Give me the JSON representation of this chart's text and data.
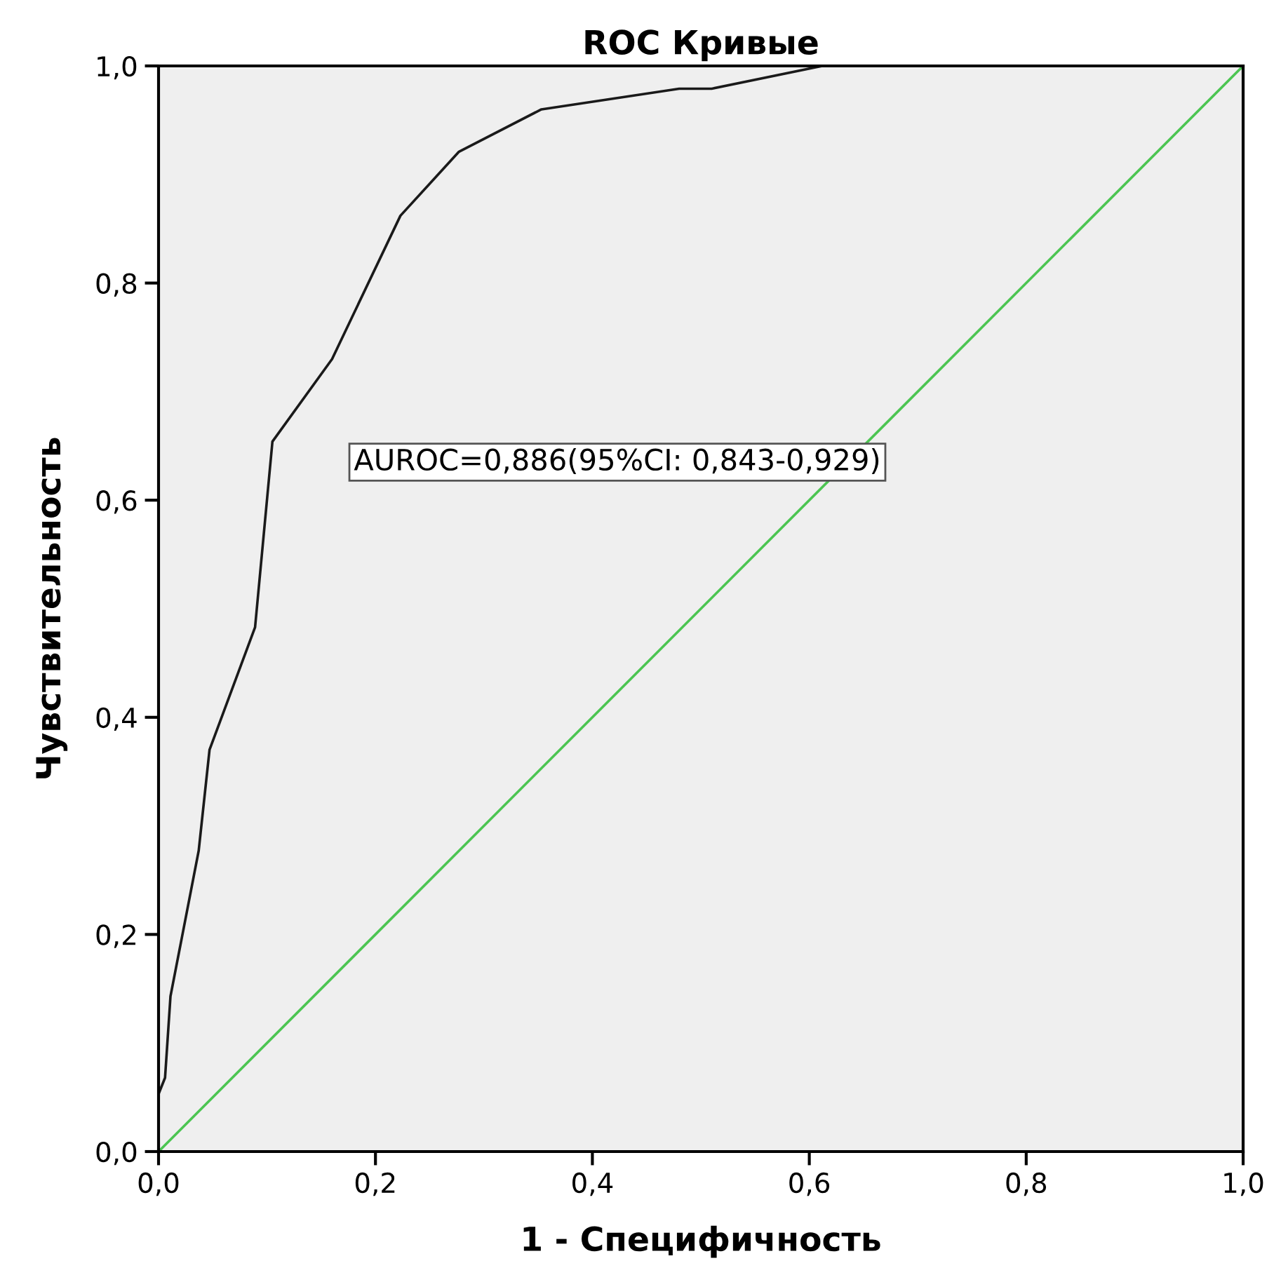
{
  "chart_data": {
    "type": "line",
    "title": "ROC Кривые",
    "xlabel": "1 - Специфичность",
    "ylabel": "Чувствительность",
    "series": [
      {
        "color": "#1a1a1a",
        "x": [
          0,
          0,
          0.006,
          0.011,
          0.037,
          0.047,
          0.089,
          0.105,
          0.16,
          0.223,
          0.277,
          0.353,
          0.48,
          0.51,
          0.612,
          1.0
        ],
        "values": [
          0,
          0.053,
          0.068,
          0.143,
          0.277,
          0.37,
          0.483,
          0.654,
          0.73,
          0.862,
          0.921,
          0.96,
          0.979,
          0.979,
          1.0,
          1.0
        ]
      },
      {
        "color": "#4cc552",
        "x": [
          0,
          1.0
        ],
        "values": [
          0,
          1.0
        ]
      }
    ],
    "annotations": [
      "AUROC=0,886(95%CI: 0,843-0,929)"
    ],
    "xlim": [
      0,
      1.0
    ],
    "ylim": [
      0,
      1.0
    ],
    "xticks": [
      {
        "value": 0,
        "label": "0,0"
      },
      {
        "value": 0.2,
        "label": "0,2"
      },
      {
        "value": 0.4,
        "label": "0,4"
      },
      {
        "value": 0.6,
        "label": "0,6"
      },
      {
        "value": 0.8,
        "label": "0,8"
      },
      {
        "value": 1.0,
        "label": "1,0"
      }
    ],
    "yticks": [
      {
        "value": 0,
        "label": "0,0"
      },
      {
        "value": 0.2,
        "label": "0,2"
      },
      {
        "value": 0.4,
        "label": "0,4"
      },
      {
        "value": 0.6,
        "label": "0,6"
      },
      {
        "value": 0.8,
        "label": "0,8"
      },
      {
        "value": 1.0,
        "label": "1,0"
      }
    ],
    "grid": false,
    "marker": "none",
    "line_style": "solid"
  }
}
